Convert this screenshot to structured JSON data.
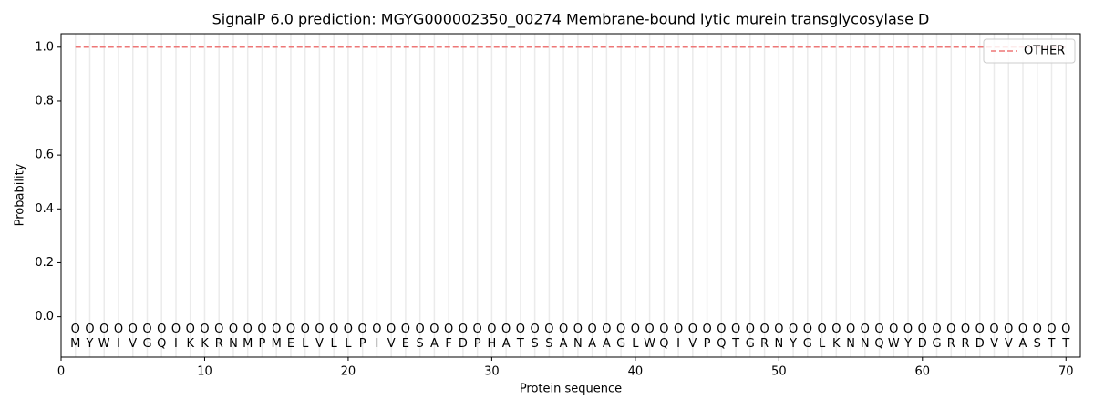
{
  "chart_data": {
    "type": "line",
    "title": "SignalP 6.0 prediction: MGYG000002350_00274 Membrane-bound lytic murein transglycosylase D",
    "x_label": "Protein sequence",
    "y_label": "Probability",
    "x": [
      1,
      2,
      3,
      4,
      5,
      6,
      7,
      8,
      9,
      10,
      11,
      12,
      13,
      14,
      15,
      16,
      17,
      18,
      19,
      20,
      21,
      22,
      23,
      24,
      25,
      26,
      27,
      28,
      29,
      30,
      31,
      32,
      33,
      34,
      35,
      36,
      37,
      38,
      39,
      40,
      41,
      42,
      43,
      44,
      45,
      46,
      47,
      48,
      49,
      50,
      51,
      52,
      53,
      54,
      55,
      56,
      57,
      58,
      59,
      60,
      61,
      62,
      63,
      64,
      65,
      66,
      67,
      68,
      69,
      70
    ],
    "sequence": [
      "M",
      "Y",
      "W",
      "I",
      "V",
      "G",
      "Q",
      "I",
      "K",
      "K",
      "R",
      "N",
      "M",
      "P",
      "M",
      "E",
      "L",
      "V",
      "L",
      "L",
      "P",
      "I",
      "V",
      "E",
      "S",
      "A",
      "F",
      "D",
      "P",
      "H",
      "A",
      "T",
      "S",
      "S",
      "A",
      "N",
      "A",
      "A",
      "G",
      "L",
      "W",
      "Q",
      "I",
      "V",
      "P",
      "Q",
      "T",
      "G",
      "R",
      "N",
      "Y",
      "G",
      "L",
      "K",
      "N",
      "N",
      "Q",
      "W",
      "Y",
      "D",
      "G",
      "R",
      "R",
      "D",
      "V",
      "V",
      "A",
      "S",
      "T",
      "T"
    ],
    "residue_labels": [
      "O",
      "O",
      "O",
      "O",
      "O",
      "O",
      "O",
      "O",
      "O",
      "O",
      "O",
      "O",
      "O",
      "O",
      "O",
      "O",
      "O",
      "O",
      "O",
      "O",
      "O",
      "O",
      "O",
      "O",
      "O",
      "O",
      "O",
      "O",
      "O",
      "O",
      "O",
      "O",
      "O",
      "O",
      "O",
      "O",
      "O",
      "O",
      "O",
      "O",
      "O",
      "O",
      "O",
      "O",
      "O",
      "O",
      "O",
      "O",
      "O",
      "O",
      "O",
      "O",
      "O",
      "O",
      "O",
      "O",
      "O",
      "O",
      "O",
      "O",
      "O",
      "O",
      "O",
      "O",
      "O",
      "O",
      "O",
      "O",
      "O",
      "O"
    ],
    "series": [
      {
        "name": "OTHER",
        "color": "#ee7777",
        "dash": true,
        "values": [
          1,
          1,
          1,
          1,
          1,
          1,
          1,
          1,
          1,
          1,
          1,
          1,
          1,
          1,
          1,
          1,
          1,
          1,
          1,
          1,
          1,
          1,
          1,
          1,
          1,
          1,
          1,
          1,
          1,
          1,
          1,
          1,
          1,
          1,
          1,
          1,
          1,
          1,
          1,
          1,
          1,
          1,
          1,
          1,
          1,
          1,
          1,
          1,
          1,
          1,
          1,
          1,
          1,
          1,
          1,
          1,
          1,
          1,
          1,
          1,
          1,
          1,
          1,
          1,
          1,
          1,
          1,
          1,
          1,
          1
        ]
      }
    ],
    "xlim": [
      0,
      71
    ],
    "ylim": [
      -0.15,
      1.05
    ],
    "xticks": [
      0,
      10,
      20,
      30,
      40,
      50,
      60,
      70
    ],
    "yticks": [
      {
        "value": 0,
        "label": "0.0"
      },
      {
        "value": 0.2,
        "label": "0.2"
      },
      {
        "value": 0.4,
        "label": "0.4"
      },
      {
        "value": 0.6,
        "label": "0.6"
      },
      {
        "value": 0.8,
        "label": "0.8"
      },
      {
        "value": 1,
        "label": "1.0"
      }
    ],
    "legend": "upper right"
  }
}
